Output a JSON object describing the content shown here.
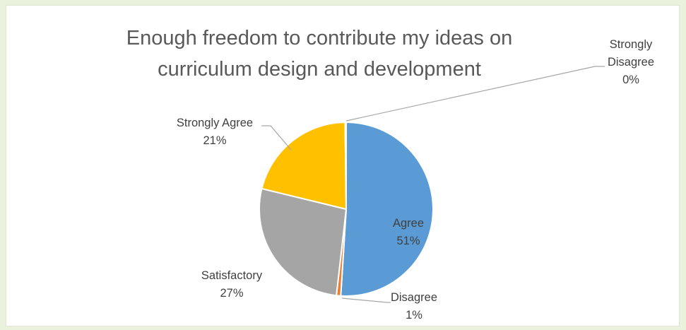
{
  "chart_data": {
    "type": "pie",
    "title_lines": [
      "Enough freedom to contribute my ideas on",
      "curriculum design and development"
    ],
    "slices": [
      {
        "name": "Agree",
        "label_lines": [
          "Agree"
        ],
        "pct_label": "51%",
        "value": 51,
        "color": "#5b9bd5"
      },
      {
        "name": "Disagree",
        "label_lines": [
          "Disagree"
        ],
        "pct_label": "1%",
        "value": 0.8,
        "color": "#ed7d31"
      },
      {
        "name": "Satisfactory",
        "label_lines": [
          "Satisfactory"
        ],
        "pct_label": "27%",
        "value": 27,
        "color": "#a5a5a5"
      },
      {
        "name": "Strongly Agree",
        "label_lines": [
          "Strongly Agree"
        ],
        "pct_label": "21%",
        "value": 21,
        "color": "#ffc000"
      },
      {
        "name": "Strongly Disagree",
        "label_lines": [
          "Strongly",
          "Disagree"
        ],
        "pct_label": "0%",
        "value": 0.2,
        "color": "#4472c4"
      }
    ]
  }
}
